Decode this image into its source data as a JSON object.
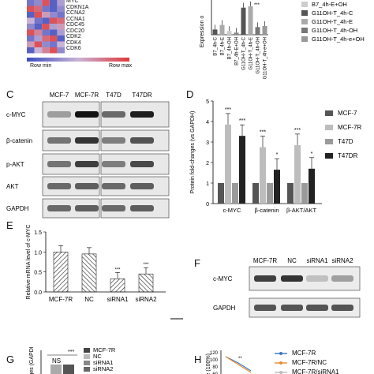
{
  "panels": {
    "C": "C",
    "D": "D",
    "E": "E",
    "F": "F",
    "G": "G",
    "H": "H"
  },
  "heatmap": {
    "genes": [
      "MYC",
      "CDKN1A",
      "CCNA2",
      "CCNA1",
      "CDC45",
      "CDC20",
      "CDK2",
      "CDK4",
      "CDK6"
    ],
    "scale_min": "Row min",
    "scale_max": "Row max",
    "colors": {
      "low": "#3b4cc0",
      "high": "#e03a3a",
      "mid": "#c9b3d6"
    }
  },
  "topbar": {
    "ylabel": "Expression o",
    "xlabels": [
      "B7_4h-C",
      "B7_4h-E",
      "B7_4h-OH",
      "B7_4h-E+OH",
      "G11OH-T_4h-C",
      "G11OH-T_4h-E",
      "G11OH-T_4h-OH",
      "G11OH-T_4h-e+OH"
    ],
    "legend": [
      "B7_4h-E+OH",
      "G11OH-T_4h-C",
      "G11OH-T_4h-E",
      "G11OH-T_4h-OH",
      "G11OH-T_4h-e+OH"
    ],
    "stars": "***",
    "chart_data": {
      "type": "bar",
      "categories": [
        "B7_4h-C",
        "B7_4h-E",
        "B7_4h-OH",
        "B7_4h-E+OH",
        "G11OH-T_4h-C",
        "G11OH-T_4h-E",
        "G11OH-T_4h-OH",
        "G11OH-T_4h-e+OH"
      ],
      "values": [
        150,
        280,
        110,
        60,
        780,
        820,
        220,
        250
      ],
      "ylim": [
        0,
        1000
      ]
    }
  },
  "westernC": {
    "cols": [
      "MCF-7",
      "MCF-7R",
      "T47D",
      "T47DR"
    ],
    "rows": [
      "c-MYC",
      "β-catenin",
      "p-AKT",
      "AKT",
      "GAPDH"
    ]
  },
  "chartD": {
    "ylabel": "Protein fold-changes (vs GAPDH)",
    "categories": [
      "c-MYC",
      "β-catenin",
      "β-AKT/AKT"
    ],
    "yticks": [
      "0",
      "1",
      "2",
      "3",
      "4",
      "5"
    ],
    "legend": [
      "MCF-7",
      "MCF-7R",
      "T47D",
      "T47DR"
    ],
    "colors": [
      "#555555",
      "#bdbdbd",
      "#9a9a9a",
      "#222222"
    ],
    "stars": {
      "s3": "***",
      "s1": "*"
    },
    "chart_data": {
      "type": "bar",
      "categories": [
        "c-MYC",
        "β-catenin",
        "β-AKT/AKT"
      ],
      "ylim": [
        0,
        5
      ],
      "series": [
        {
          "name": "MCF-7",
          "values": [
            1,
            1,
            1
          ]
        },
        {
          "name": "MCF-7R",
          "values": [
            3.85,
            2.75,
            2.85
          ]
        },
        {
          "name": "T47D",
          "values": [
            1,
            1,
            1
          ]
        },
        {
          "name": "T47DR",
          "values": [
            3.3,
            1.65,
            1.7
          ]
        }
      ]
    }
  },
  "chartE": {
    "ylabel": "Relative mRNA level of c-MYC",
    "yticks": [
      "0.0",
      "0.5",
      "1.0",
      "1.5"
    ],
    "categories": [
      "MCF-7R",
      "NC",
      "siRNA1",
      "siRNA2"
    ],
    "stars": "***",
    "chart_data": {
      "type": "bar",
      "categories": [
        "MCF-7R",
        "NC",
        "siRNA1",
        "siRNA2"
      ],
      "values": [
        1.0,
        0.95,
        0.33,
        0.45
      ],
      "ylim": [
        0,
        1.5
      ]
    }
  },
  "westernF": {
    "cols": [
      "MCF-7R",
      "NC",
      "siRNA1",
      "siRNA2"
    ],
    "rows": [
      "c-MYC",
      "GAPDH"
    ]
  },
  "chartG": {
    "ylabel": "-changes (GAPDH)",
    "sig": "NS",
    "stars": "***",
    "legend": [
      "MCF-7R",
      "NC",
      "siRNA1",
      "siRNA2"
    ],
    "chart_data": {
      "type": "bar",
      "categories": [
        "MCF-7R",
        "NC",
        "siRNA1",
        "siRNA2"
      ],
      "values": [
        1.0,
        1.0,
        null,
        null
      ]
    }
  },
  "chartH": {
    "ylabel": "ite (100%)",
    "yticks": [
      "120",
      "100",
      "80",
      "60"
    ],
    "stars": "**",
    "legend": [
      "MCF-7R",
      "MCF-7R/NC",
      "MCF-7R/siRNA1"
    ],
    "colors": [
      "#3a78c9",
      "#e88a2a",
      "#bbbbbb"
    ]
  }
}
